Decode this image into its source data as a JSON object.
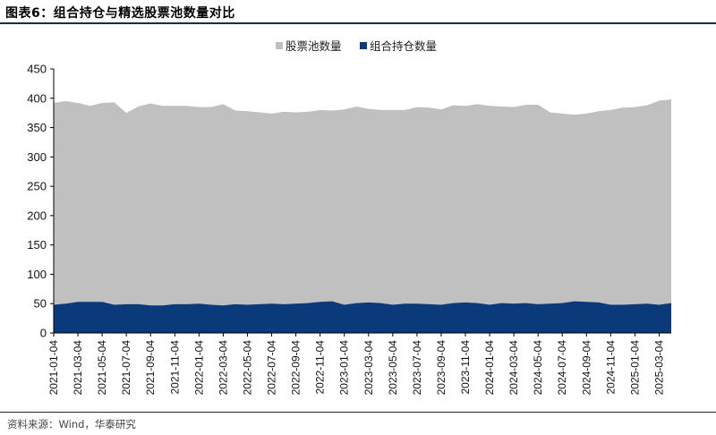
{
  "header": {
    "title": "图表6：组合持仓与精选股票池数量对比"
  },
  "footer": {
    "source": "资料来源：Wind，华泰研究"
  },
  "chart_data": {
    "type": "area",
    "title": "图表6：组合持仓与精选股票池数量对比",
    "xlabel": "",
    "ylabel": "",
    "ylim": [
      0,
      450
    ],
    "yticks": [
      0,
      50,
      100,
      150,
      200,
      250,
      300,
      350,
      400,
      450
    ],
    "grid": false,
    "legend_position": "top-center",
    "x": [
      "2021-01-04",
      "2021-02-04",
      "2021-03-04",
      "2021-04-04",
      "2021-05-04",
      "2021-06-04",
      "2021-07-04",
      "2021-08-04",
      "2021-09-04",
      "2021-10-04",
      "2021-11-04",
      "2021-12-04",
      "2022-01-04",
      "2022-02-04",
      "2022-03-04",
      "2022-04-04",
      "2022-05-04",
      "2022-06-04",
      "2022-07-04",
      "2022-08-04",
      "2022-09-04",
      "2022-10-04",
      "2022-11-04",
      "2022-12-04",
      "2023-01-04",
      "2023-02-04",
      "2023-03-04",
      "2023-04-04",
      "2023-05-04",
      "2023-06-04",
      "2023-07-04",
      "2023-08-04",
      "2023-09-04",
      "2023-10-04",
      "2023-11-04",
      "2023-12-04",
      "2024-01-04",
      "2024-02-04",
      "2024-03-04",
      "2024-04-04",
      "2024-05-04",
      "2024-06-04",
      "2024-07-04",
      "2024-08-04",
      "2024-09-04",
      "2024-10-04",
      "2024-11-04",
      "2024-12-04",
      "2025-01-04",
      "2025-02-04",
      "2025-03-04",
      "2025-04-04"
    ],
    "x_tick_labels": [
      "2021-01-04",
      "2021-03-04",
      "2021-05-04",
      "2021-07-04",
      "2021-09-04",
      "2021-11-04",
      "2022-01-04",
      "2022-03-04",
      "2022-05-04",
      "2022-07-04",
      "2022-09-04",
      "2022-11-04",
      "2023-01-04",
      "2023-03-04",
      "2023-05-04",
      "2023-07-04",
      "2023-09-04",
      "2023-11-04",
      "2024-01-04",
      "2024-03-04",
      "2024-05-04",
      "2024-07-04",
      "2024-09-04",
      "2024-11-04",
      "2025-01-04",
      "2025-03-04"
    ],
    "series": [
      {
        "name": "股票池数量",
        "color": "#c0c0c0",
        "values": [
          392,
          395,
          392,
          387,
          392,
          393,
          375,
          386,
          391,
          387,
          387,
          387,
          385,
          385,
          390,
          379,
          378,
          376,
          374,
          377,
          376,
          377,
          380,
          379,
          381,
          386,
          382,
          380,
          380,
          380,
          385,
          384,
          381,
          388,
          387,
          390,
          387,
          386,
          385,
          389,
          389,
          376,
          374,
          372,
          374,
          378,
          380,
          384,
          385,
          388,
          396,
          398
        ]
      },
      {
        "name": "组合持仓数量",
        "color": "#0b3a7a",
        "values": [
          48,
          50,
          53,
          53,
          53,
          48,
          49,
          49,
          47,
          47,
          49,
          49,
          50,
          48,
          47,
          49,
          48,
          49,
          50,
          49,
          50,
          51,
          53,
          54,
          48,
          51,
          52,
          51,
          48,
          50,
          50,
          49,
          48,
          51,
          52,
          51,
          48,
          51,
          50,
          51,
          49,
          50,
          51,
          54,
          53,
          52,
          48,
          48,
          49,
          50,
          48,
          51
        ]
      }
    ]
  }
}
